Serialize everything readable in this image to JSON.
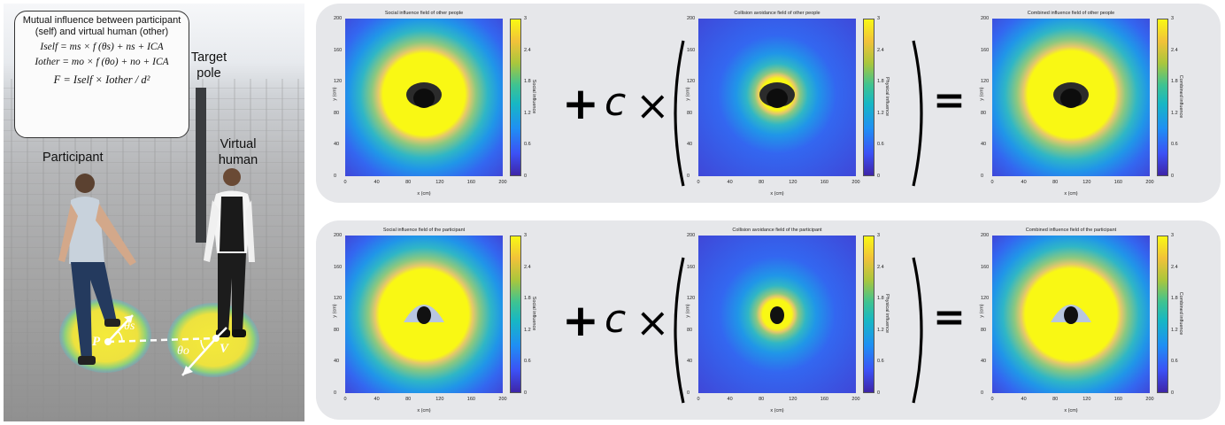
{
  "scene": {
    "equation_box": {
      "heading": "Mutual influence between participant (self) and virtual human (other)",
      "eq_self": "Iself = ms × f (θs) + ns + ICA",
      "eq_other": "Iother = mo × f (θo) + no + ICA",
      "eq_force": "F = Iself × Iother / d²"
    },
    "target_pole_label": "Target pole",
    "participant_label": "Participant",
    "virtual_human_label": "Virtual human",
    "point_p": "P",
    "point_v": "V",
    "angle_s": "θs",
    "angle_o": "θo"
  },
  "operators": {
    "plus": "+",
    "c": "c",
    "times": "×",
    "equals": "="
  },
  "axes": {
    "xlabel": "x (cm)",
    "ylabel": "y (cm)",
    "xticks": [
      "0",
      "40",
      "80",
      "120",
      "160",
      "200"
    ],
    "yticks": [
      "0",
      "40",
      "80",
      "120",
      "160",
      "200"
    ],
    "cbar_ticks": [
      "0",
      "0.6",
      "1.2",
      "1.8",
      "2.4",
      "3"
    ]
  },
  "rows": [
    {
      "panels": [
        {
          "title": "Social influence field of other people",
          "cbar_label": "Social influence"
        },
        {
          "title": "Collision avoidance field of other people",
          "cbar_label": "Physical influence"
        },
        {
          "title": "Combined influence field of other people",
          "cbar_label": "Combined influence"
        }
      ]
    },
    {
      "panels": [
        {
          "title": "Social influence field of the participant",
          "cbar_label": "Social influence"
        },
        {
          "title": "Collision avoidance field of the participant",
          "cbar_label": "Physical influence"
        },
        {
          "title": "Combined influence field of the participant",
          "cbar_label": "Combined influence"
        }
      ]
    }
  ],
  "colors": {
    "yellow": "#f9f814",
    "background_blue": "#3e3fd0",
    "panel_bg": "#e6e7ea"
  }
}
